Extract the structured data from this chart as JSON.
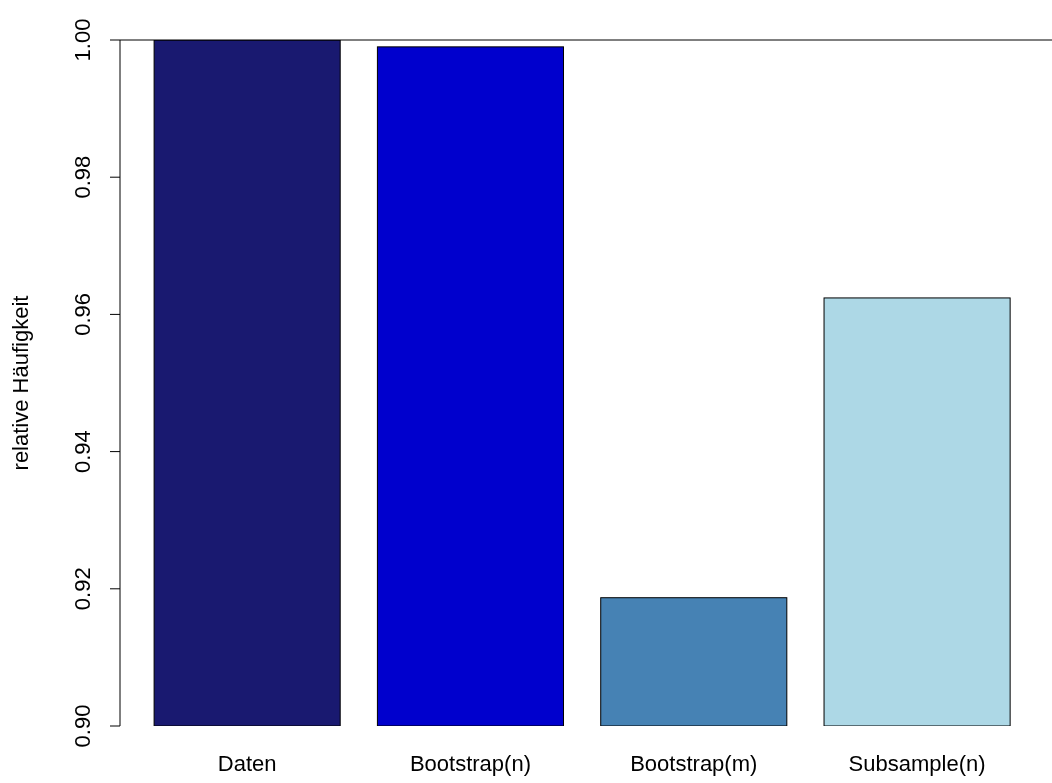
{
  "chart_data": {
    "type": "bar",
    "ylabel": "relative Häufigkeit",
    "categories": [
      "Daten",
      "Bootstrap(n)",
      "Bootstrap(m)",
      "Subsample(n)"
    ],
    "values": [
      1.0,
      0.999,
      0.9187,
      0.9624
    ],
    "colors": [
      "#191970",
      "#0000cd",
      "#4682b4",
      "#add8e6"
    ],
    "ylim": [
      0.9,
      1.0
    ],
    "yticks": [
      {
        "value": 0.9,
        "label": "0.90"
      },
      0.92,
      0.94,
      0.96,
      0.98,
      {
        "value": 1.0,
        "label": "1.00"
      }
    ],
    "ref_lines": [
      {
        "axis": "y",
        "value": 1.0,
        "color": "#000000"
      }
    ],
    "grid": false
  }
}
